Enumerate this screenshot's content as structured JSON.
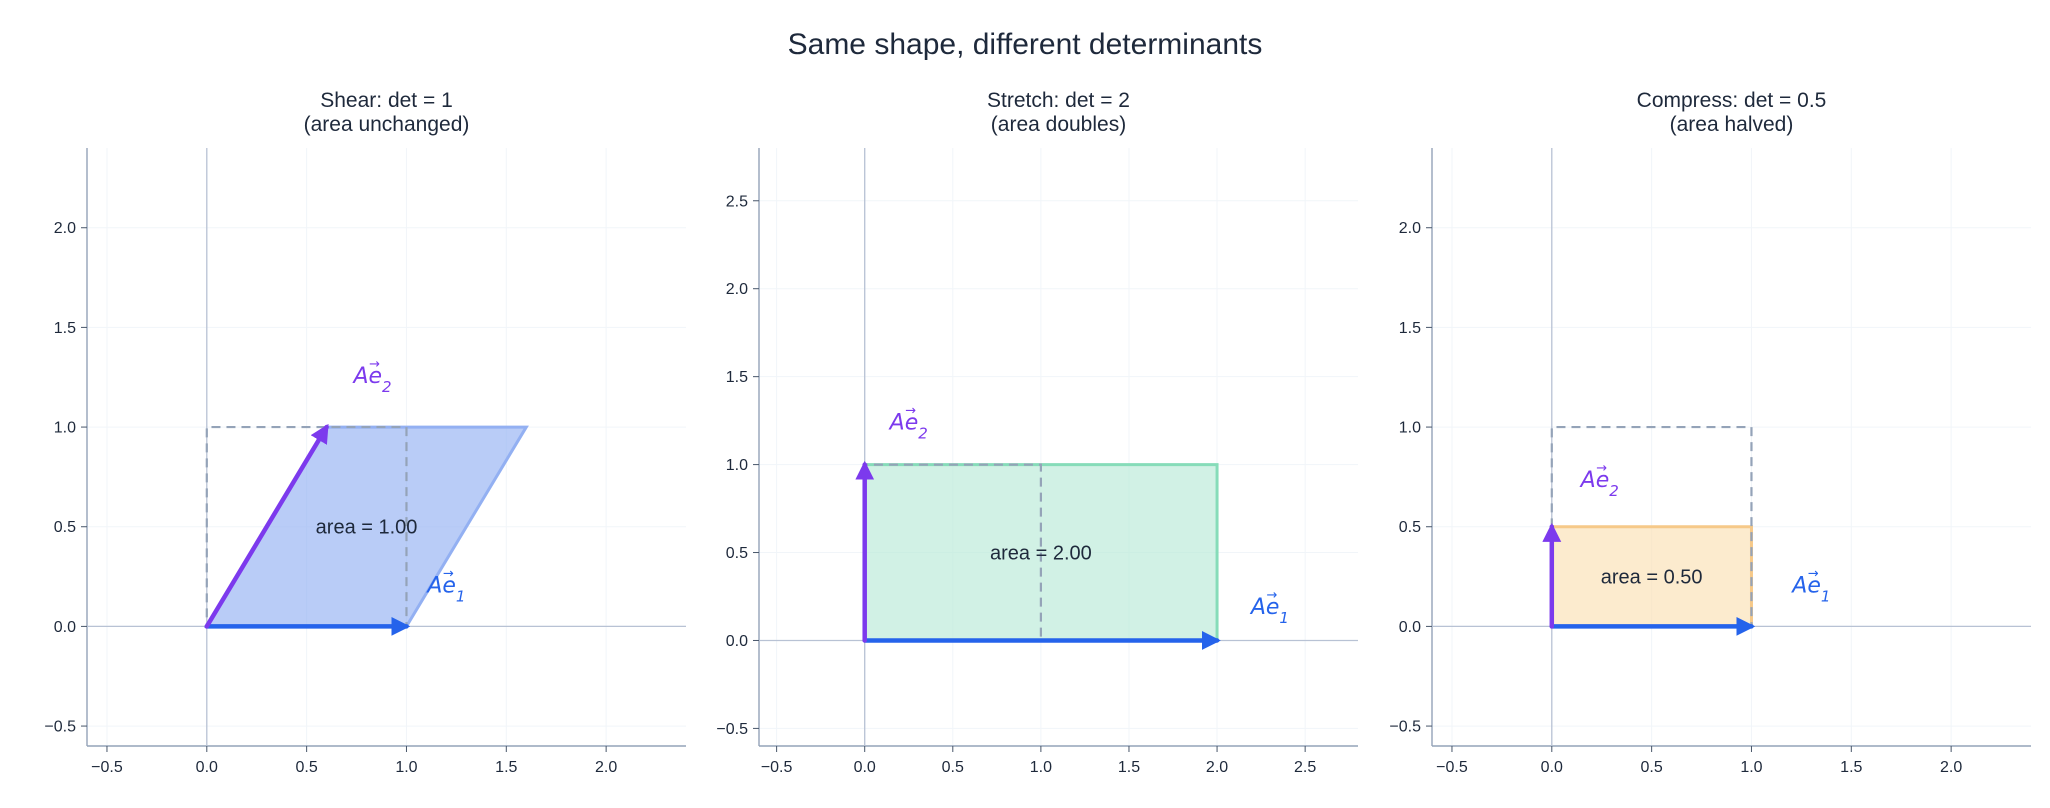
{
  "figure": {
    "title": "Same shape, different determinants"
  },
  "colors": {
    "e1": "#2563eb",
    "e2": "#7c3aed",
    "axis": "#94a3b8",
    "grid": "#f1f5f9",
    "unit_square": "#94a3b8",
    "text": "#1e293b"
  },
  "chart_data": [
    {
      "type": "vector-plot",
      "title": "Shear: det = 1",
      "subtitle": "(area unchanged)",
      "xlim": [
        -0.6,
        2.4
      ],
      "ylim": [
        -0.6,
        2.4
      ],
      "xticks": [
        -0.5,
        0.0,
        0.5,
        1.0,
        1.5,
        2.0
      ],
      "yticks": [
        -0.5,
        0.0,
        0.5,
        1.0,
        1.5,
        2.0
      ],
      "grid": true,
      "unit_square": [
        [
          0,
          0
        ],
        [
          1,
          0
        ],
        [
          1,
          1
        ],
        [
          0,
          1
        ]
      ],
      "parallelogram": [
        [
          0,
          0
        ],
        [
          1,
          0
        ],
        [
          1.6,
          1
        ],
        [
          0.6,
          1
        ]
      ],
      "fill_color": "#93b0f2",
      "edge_color": "#93b0f2",
      "det": 1,
      "area_label": "area = 1.00",
      "area_label_pos": [
        0.8,
        0.5
      ],
      "vectors": [
        {
          "name": "Ae1",
          "to": [
            1,
            0
          ],
          "color": "#2563eb",
          "label_pos": [
            1.2,
            0.17
          ]
        },
        {
          "name": "Ae2",
          "to": [
            0.6,
            1
          ],
          "color": "#7c3aed",
          "label_pos": [
            0.83,
            1.22
          ]
        }
      ]
    },
    {
      "type": "vector-plot",
      "title": "Stretch: det = 2",
      "subtitle": "(area doubles)",
      "xlim": [
        -0.6,
        2.8
      ],
      "ylim": [
        -0.6,
        2.8
      ],
      "xticks": [
        -0.5,
        0.0,
        0.5,
        1.0,
        1.5,
        2.0,
        2.5
      ],
      "yticks": [
        -0.5,
        0.0,
        0.5,
        1.0,
        1.5,
        2.0,
        2.5
      ],
      "grid": true,
      "unit_square": [
        [
          0,
          0
        ],
        [
          1,
          0
        ],
        [
          1,
          1
        ],
        [
          0,
          1
        ]
      ],
      "parallelogram": [
        [
          0,
          0
        ],
        [
          2,
          0
        ],
        [
          2,
          1
        ],
        [
          0,
          1
        ]
      ],
      "fill_color": "#b8ead7",
      "edge_color": "#86dcb9",
      "det": 2,
      "area_label": "area = 2.00",
      "area_label_pos": [
        1.0,
        0.5
      ],
      "vectors": [
        {
          "name": "Ae1",
          "to": [
            2,
            0
          ],
          "color": "#2563eb",
          "label_pos": [
            2.3,
            0.15
          ]
        },
        {
          "name": "Ae2",
          "to": [
            0,
            1
          ],
          "color": "#7c3aed",
          "label_pos": [
            0.25,
            1.2
          ]
        }
      ]
    },
    {
      "type": "vector-plot",
      "title": "Compress: det = 0.5",
      "subtitle": "(area halved)",
      "xlim": [
        -0.6,
        2.4
      ],
      "ylim": [
        -0.6,
        2.4
      ],
      "xticks": [
        -0.5,
        0.0,
        0.5,
        1.0,
        1.5,
        2.0
      ],
      "yticks": [
        -0.5,
        0.0,
        0.5,
        1.0,
        1.5,
        2.0
      ],
      "grid": true,
      "unit_square": [
        [
          0,
          0
        ],
        [
          1,
          0
        ],
        [
          1,
          1
        ],
        [
          0,
          1
        ]
      ],
      "parallelogram": [
        [
          0,
          0
        ],
        [
          1,
          0
        ],
        [
          1,
          0.5
        ],
        [
          0,
          0.5
        ]
      ],
      "fill_color": "#fbe0b4",
      "edge_color": "#f6c989",
      "det": 0.5,
      "area_label": "area = 0.50",
      "area_label_pos": [
        0.5,
        0.25
      ],
      "vectors": [
        {
          "name": "Ae1",
          "to": [
            1,
            0
          ],
          "color": "#2563eb",
          "label_pos": [
            1.3,
            0.17
          ]
        },
        {
          "name": "Ae2",
          "to": [
            0,
            0.5
          ],
          "color": "#7c3aed",
          "label_pos": [
            0.24,
            0.7
          ]
        }
      ]
    }
  ]
}
